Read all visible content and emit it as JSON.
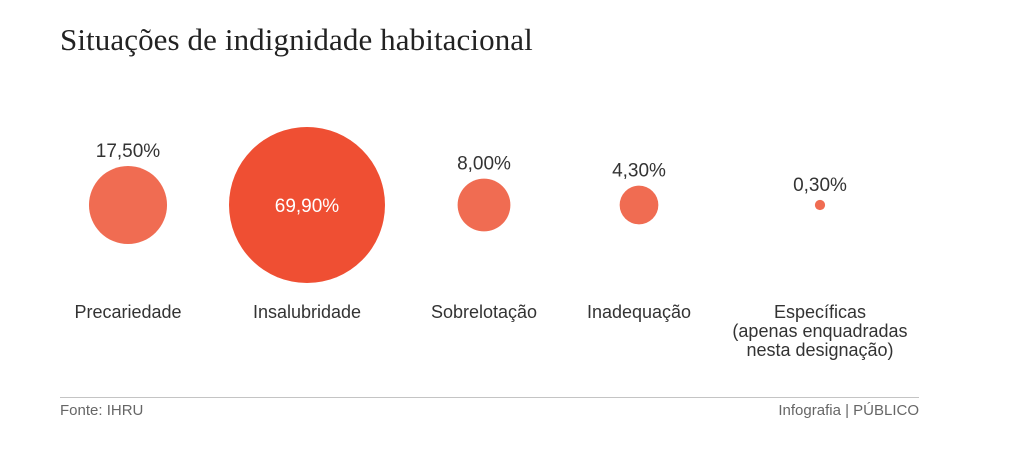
{
  "chart_data": {
    "type": "bubble",
    "title": "Situações de indignidade habitacional",
    "unit": "%",
    "categories": [
      [
        "Precariedade"
      ],
      [
        "Insalubridade"
      ],
      [
        "Sobrelotação"
      ],
      [
        "Inadequação"
      ],
      [
        "Específicas",
        "(apenas enquadradas",
        "nesta designação)"
      ]
    ],
    "values": [
      17.5,
      69.9,
      8.0,
      4.3,
      0.3
    ],
    "value_labels": [
      "17,50%",
      "69,90%",
      "8,00%",
      "4,30%",
      "0,30%"
    ],
    "colors": {
      "dominant": "#ef4f33",
      "standard": "#f06c52"
    },
    "source": "Fonte: IHRU",
    "credit": "Infografia | PÚBLICO"
  }
}
